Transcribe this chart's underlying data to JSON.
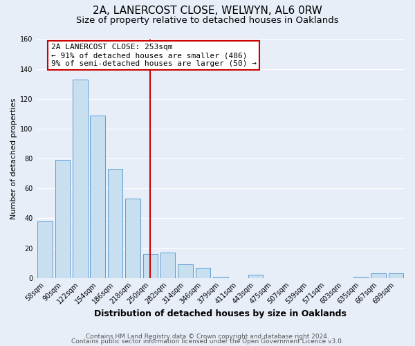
{
  "title": "2A, LANERCOST CLOSE, WELWYN, AL6 0RW",
  "subtitle": "Size of property relative to detached houses in Oaklands",
  "xlabel": "Distribution of detached houses by size in Oaklands",
  "ylabel": "Number of detached properties",
  "bar_labels": [
    "58sqm",
    "90sqm",
    "122sqm",
    "154sqm",
    "186sqm",
    "218sqm",
    "250sqm",
    "282sqm",
    "314sqm",
    "346sqm",
    "379sqm",
    "411sqm",
    "443sqm",
    "475sqm",
    "507sqm",
    "539sqm",
    "571sqm",
    "603sqm",
    "635sqm",
    "667sqm",
    "699sqm"
  ],
  "bar_heights": [
    38,
    79,
    133,
    109,
    73,
    53,
    16,
    17,
    9,
    7,
    1,
    0,
    2,
    0,
    0,
    0,
    0,
    0,
    1,
    3,
    3
  ],
  "bar_color": "#c8dff0",
  "bar_edge_color": "#5b9bd5",
  "vline_x": 6,
  "vline_color": "#cc0000",
  "ylim": [
    0,
    160
  ],
  "yticks": [
    0,
    20,
    40,
    60,
    80,
    100,
    120,
    140,
    160
  ],
  "annotation_title": "2A LANERCOST CLOSE: 253sqm",
  "annotation_line1": "← 91% of detached houses are smaller (486)",
  "annotation_line2": "9% of semi-detached houses are larger (50) →",
  "annotation_box_color": "#ffffff",
  "annotation_box_edge": "#cc0000",
  "footer1": "Contains HM Land Registry data © Crown copyright and database right 2024.",
  "footer2": "Contains public sector information licensed under the Open Government Licence v3.0.",
  "bg_color": "#e8eef8",
  "plot_bg_color": "#e8eef8",
  "grid_color": "#ffffff",
  "title_fontsize": 11,
  "subtitle_fontsize": 9.5,
  "tick_fontsize": 7,
  "ylabel_fontsize": 8,
  "xlabel_fontsize": 9,
  "footer_fontsize": 6.5
}
